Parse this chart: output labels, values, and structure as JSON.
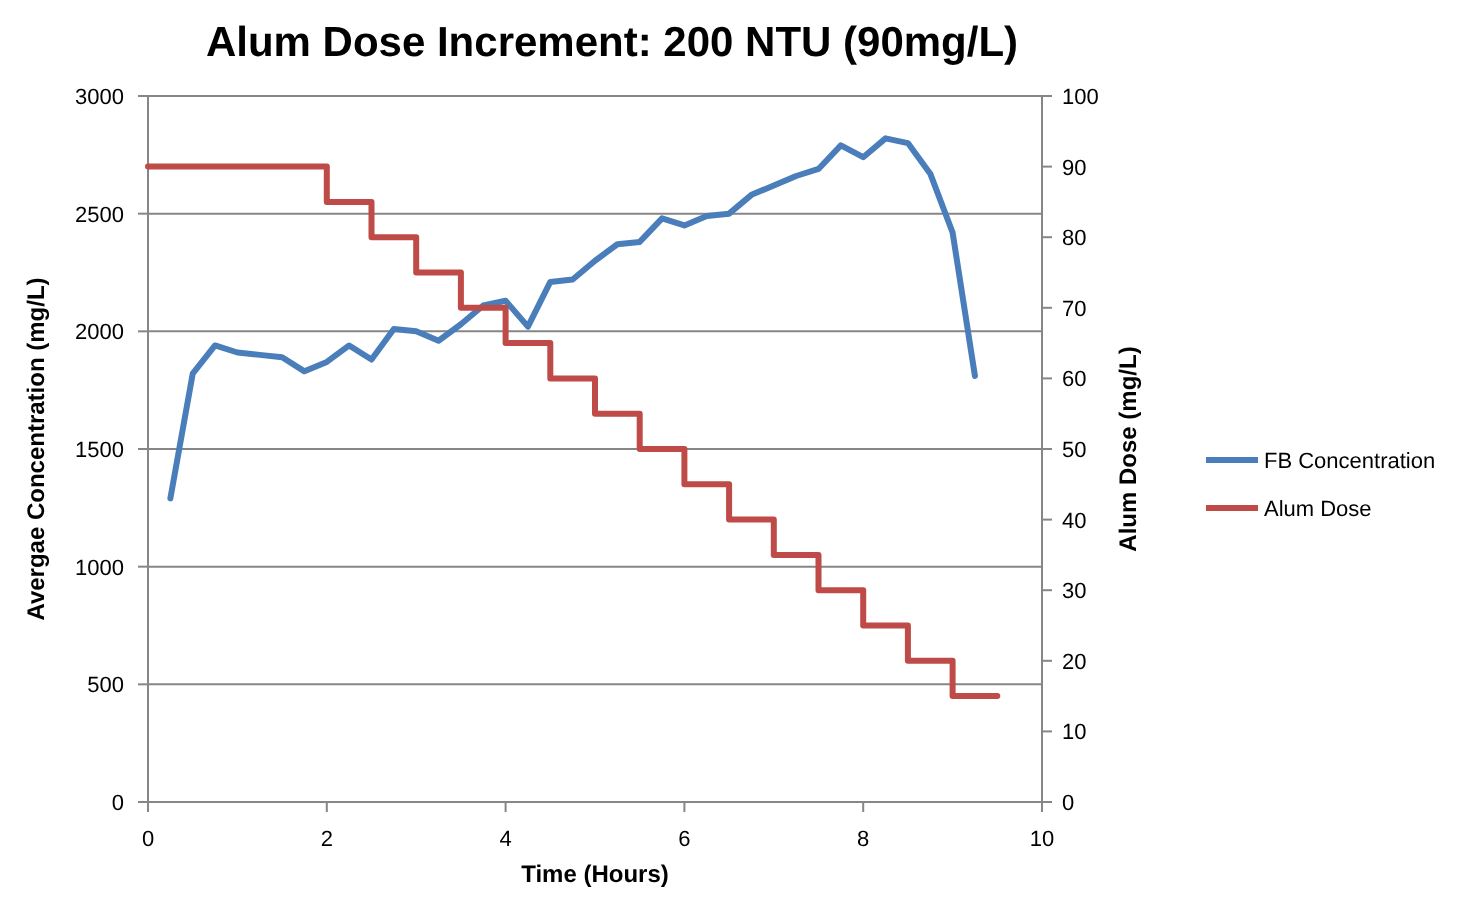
{
  "chart_data": {
    "type": "line",
    "title": "Alum Dose Increment: 200 NTU (90mg/L)",
    "xlabel": "Time (Hours)",
    "ylabel": "Avergae Concentration (mg/L)",
    "y2label": "Alum Dose (mg/L)",
    "xlim": [
      0,
      10
    ],
    "xticks": [
      0,
      2,
      4,
      6,
      8,
      10
    ],
    "ylim": [
      0,
      3000
    ],
    "yticks": [
      0,
      500,
      1000,
      1500,
      2000,
      2500,
      3000
    ],
    "y2lim": [
      0,
      100
    ],
    "y2ticks": [
      0,
      10,
      20,
      30,
      40,
      50,
      60,
      70,
      80,
      90,
      100
    ],
    "grid": "y",
    "legend": "right",
    "series": [
      {
        "name": "FB Concentration",
        "color": "#4a7ebb",
        "x": [
          0.25,
          0.5,
          0.75,
          1,
          1.25,
          1.5,
          1.75,
          2,
          2.25,
          2.5,
          2.75,
          3,
          3.25,
          3.5,
          3.75,
          4,
          4.25,
          4.5,
          4.75,
          5,
          5.25,
          5.5,
          5.75,
          6,
          6.25,
          6.5,
          6.75,
          7,
          7.25,
          7.5,
          7.75,
          8,
          8.25,
          8.5,
          8.75,
          9,
          9.25
        ],
        "values": [
          1290,
          1820,
          1940,
          1910,
          1900,
          1890,
          1830,
          1870,
          1940,
          1880,
          2010,
          2000,
          1960,
          2030,
          2110,
          2130,
          2020,
          2210,
          2220,
          2300,
          2370,
          2380,
          2480,
          2450,
          2490,
          2500,
          2580,
          2620,
          2660,
          2690,
          2790,
          2740,
          2820,
          2800,
          2670,
          2420,
          1810
        ]
      },
      {
        "name": "Alum Dose",
        "color": "#be4b48",
        "type": "step",
        "axis": "y2",
        "x": [
          0,
          2,
          2.5,
          3,
          3.5,
          4,
          4.5,
          5,
          5.5,
          6,
          6.5,
          7,
          7.5,
          8,
          8.5,
          9,
          9.5
        ],
        "values": [
          90,
          85,
          80,
          75,
          70,
          65,
          60,
          55,
          50,
          45,
          40,
          35,
          30,
          25,
          20,
          15,
          15
        ]
      }
    ]
  }
}
